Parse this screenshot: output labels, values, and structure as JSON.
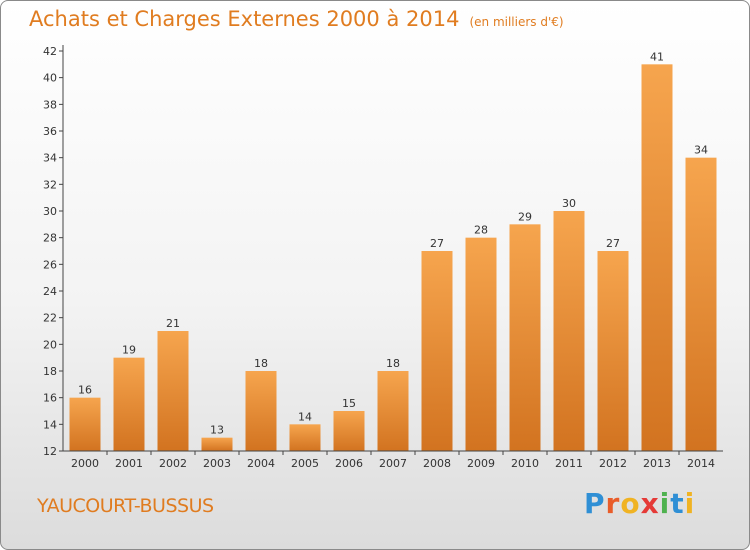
{
  "chart_data": {
    "type": "bar",
    "title": "Achats et Charges Externes 2000 à 2014",
    "subtitle": "(en milliers d'€)",
    "categories": [
      "2000",
      "2001",
      "2002",
      "2003",
      "2004",
      "2005",
      "2006",
      "2007",
      "2008",
      "2009",
      "2010",
      "2011",
      "2012",
      "2013",
      "2014"
    ],
    "values": [
      16,
      19,
      21,
      13,
      18,
      14,
      15,
      18,
      27,
      28,
      29,
      30,
      27,
      41,
      34
    ],
    "ylim": [
      12,
      42
    ],
    "yticks": [
      12,
      14,
      16,
      18,
      20,
      22,
      24,
      26,
      28,
      30,
      32,
      34,
      36,
      38,
      40,
      42
    ],
    "grid": false,
    "bar_color_top": "#f6a54e",
    "bar_color_bottom": "#d27320"
  },
  "footer": {
    "town": "YAUCOURT-BUSSUS",
    "logo_letters": [
      {
        "ch": "P",
        "color": "#2f8fd5"
      },
      {
        "ch": "r",
        "color": "#e95d2a"
      },
      {
        "ch": "o",
        "color": "#f0b323"
      },
      {
        "ch": "x",
        "color": "#e53a37"
      },
      {
        "ch": "i",
        "color": "#4fb24f"
      },
      {
        "ch": "t",
        "color": "#2f8fd5"
      },
      {
        "ch": "i",
        "color": "#f0b323"
      }
    ]
  }
}
